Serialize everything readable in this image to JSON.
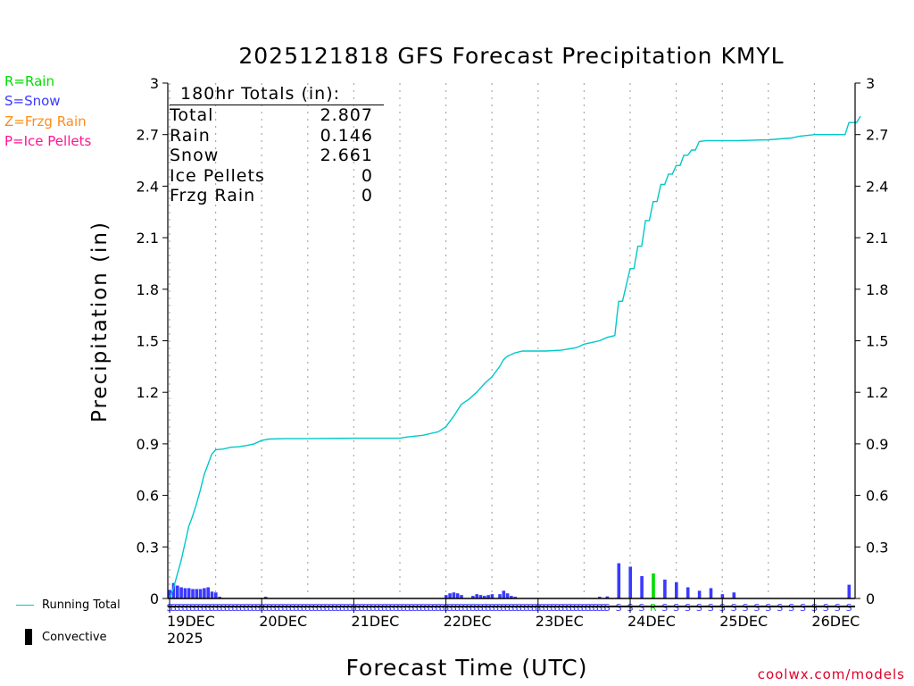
{
  "chart_data": {
    "type": "bar+line",
    "title": "2025121818 GFS Forecast Precipitation KMYL",
    "xlabel": "Forecast Time (UTC)",
    "ylabel": "Precipitation (in)",
    "ylim": [
      0,
      3
    ],
    "yticks": [
      "0",
      "0.3",
      "0.6",
      "0.9",
      "1.2",
      "1.5",
      "1.8",
      "2.1",
      "2.4",
      "2.7",
      "3"
    ],
    "xlim_hours": [
      0,
      180
    ],
    "xticks": [
      {
        "hour": 0,
        "label": "19DEC",
        "sublabel": "2025"
      },
      {
        "hour": 24,
        "label": "20DEC"
      },
      {
        "hour": 48,
        "label": "21DEC"
      },
      {
        "hour": 72,
        "label": "22DEC"
      },
      {
        "hour": 96,
        "label": "23DEC"
      },
      {
        "hour": 120,
        "label": "24DEC"
      },
      {
        "hour": 144,
        "label": "25DEC"
      },
      {
        "hour": 168,
        "label": "26DEC"
      }
    ],
    "grid": "vertical dotted at 12h",
    "legend_types": [
      "R=Rain",
      "S=Snow",
      "Z=Frzg Rain",
      "P=Ice Pellets"
    ],
    "legend_colors": {
      "R": "#00dd00",
      "S": "#3a3aff",
      "Z": "#ff8c1a",
      "P": "#ff1493"
    },
    "running_total_color": "#00c8c8",
    "series_running_total": {
      "name": "Running Total",
      "points": [
        [
          0,
          0
        ],
        [
          1,
          0.06
        ],
        [
          2,
          0.14
        ],
        [
          3,
          0.22
        ],
        [
          4,
          0.32
        ],
        [
          5,
          0.42
        ],
        [
          6,
          0.48
        ],
        [
          7,
          0.55
        ],
        [
          8,
          0.63
        ],
        [
          9,
          0.72
        ],
        [
          10,
          0.78
        ],
        [
          11,
          0.84
        ],
        [
          12,
          0.865
        ],
        [
          14,
          0.87
        ],
        [
          16,
          0.88
        ],
        [
          18,
          0.883
        ],
        [
          20,
          0.89
        ],
        [
          22,
          0.9
        ],
        [
          24,
          0.92
        ],
        [
          26,
          0.928
        ],
        [
          30,
          0.93
        ],
        [
          36,
          0.93
        ],
        [
          48,
          0.933
        ],
        [
          60,
          0.933
        ],
        [
          62,
          0.94
        ],
        [
          66,
          0.95
        ],
        [
          70,
          0.97
        ],
        [
          72,
          1.0
        ],
        [
          74,
          1.06
        ],
        [
          76,
          1.13
        ],
        [
          78,
          1.16
        ],
        [
          80,
          1.2
        ],
        [
          82,
          1.25
        ],
        [
          84,
          1.29
        ],
        [
          86,
          1.35
        ],
        [
          87,
          1.39
        ],
        [
          88,
          1.41
        ],
        [
          90,
          1.43
        ],
        [
          92,
          1.44
        ],
        [
          94,
          1.44
        ],
        [
          98,
          1.44
        ],
        [
          102,
          1.445
        ],
        [
          106,
          1.46
        ],
        [
          108,
          1.48
        ],
        [
          110,
          1.49
        ],
        [
          112,
          1.5
        ],
        [
          114,
          1.52
        ],
        [
          116,
          1.53
        ],
        [
          117,
          1.73
        ],
        [
          118,
          1.73
        ],
        [
          120,
          1.92
        ],
        [
          121,
          1.92
        ],
        [
          122,
          2.05
        ],
        [
          123,
          2.05
        ],
        [
          124,
          2.2
        ],
        [
          125,
          2.2
        ],
        [
          126,
          2.31
        ],
        [
          127,
          2.31
        ],
        [
          128,
          2.41
        ],
        [
          129,
          2.41
        ],
        [
          130,
          2.47
        ],
        [
          131,
          2.47
        ],
        [
          132,
          2.52
        ],
        [
          133,
          2.52
        ],
        [
          134,
          2.58
        ],
        [
          135,
          2.58
        ],
        [
          136,
          2.61
        ],
        [
          137,
          2.61
        ],
        [
          138,
          2.66
        ],
        [
          140,
          2.665
        ],
        [
          148,
          2.665
        ],
        [
          156,
          2.67
        ],
        [
          162,
          2.68
        ],
        [
          164,
          2.69
        ],
        [
          166,
          2.695
        ],
        [
          168,
          2.7
        ],
        [
          176,
          2.7
        ],
        [
          177,
          2.77
        ],
        [
          179,
          2.77
        ],
        [
          180,
          2.807
        ]
      ]
    },
    "bars": [
      {
        "hour": 0,
        "value": 0.05,
        "type": "S"
      },
      {
        "hour": 1,
        "value": 0.09,
        "type": "S"
      },
      {
        "hour": 2,
        "value": 0.075,
        "type": "S"
      },
      {
        "hour": 3,
        "value": 0.065,
        "type": "S"
      },
      {
        "hour": 4,
        "value": 0.06,
        "type": "S"
      },
      {
        "hour": 5,
        "value": 0.06,
        "type": "S"
      },
      {
        "hour": 6,
        "value": 0.055,
        "type": "S"
      },
      {
        "hour": 7,
        "value": 0.055,
        "type": "S"
      },
      {
        "hour": 8,
        "value": 0.055,
        "type": "S"
      },
      {
        "hour": 9,
        "value": 0.06,
        "type": "S"
      },
      {
        "hour": 10,
        "value": 0.065,
        "type": "S"
      },
      {
        "hour": 11,
        "value": 0.04,
        "type": "S"
      },
      {
        "hour": 12,
        "value": 0.035,
        "type": "S"
      },
      {
        "hour": 13,
        "value": 0.01,
        "type": "S"
      },
      {
        "hour": 25,
        "value": 0.01,
        "type": "S"
      },
      {
        "hour": 72,
        "value": 0.02,
        "type": "S"
      },
      {
        "hour": 73,
        "value": 0.03,
        "type": "S"
      },
      {
        "hour": 74,
        "value": 0.035,
        "type": "S"
      },
      {
        "hour": 75,
        "value": 0.03,
        "type": "S"
      },
      {
        "hour": 76,
        "value": 0.02,
        "type": "S"
      },
      {
        "hour": 79,
        "value": 0.015,
        "type": "S"
      },
      {
        "hour": 80,
        "value": 0.025,
        "type": "S"
      },
      {
        "hour": 81,
        "value": 0.02,
        "type": "S"
      },
      {
        "hour": 82,
        "value": 0.015,
        "type": "S"
      },
      {
        "hour": 83,
        "value": 0.02,
        "type": "S"
      },
      {
        "hour": 84,
        "value": 0.025,
        "type": "S"
      },
      {
        "hour": 86,
        "value": 0.025,
        "type": "S"
      },
      {
        "hour": 87,
        "value": 0.045,
        "type": "S"
      },
      {
        "hour": 88,
        "value": 0.03,
        "type": "S"
      },
      {
        "hour": 89,
        "value": 0.015,
        "type": "S"
      },
      {
        "hour": 90,
        "value": 0.01,
        "type": "S"
      },
      {
        "hour": 112,
        "value": 0.01,
        "type": "S"
      },
      {
        "hour": 114,
        "value": 0.012,
        "type": "S"
      },
      {
        "hour": 117,
        "value": 0.205,
        "type": "S"
      },
      {
        "hour": 120,
        "value": 0.185,
        "type": "S"
      },
      {
        "hour": 123,
        "value": 0.13,
        "type": "S"
      },
      {
        "hour": 126,
        "value": 0.146,
        "type": "R"
      },
      {
        "hour": 129,
        "value": 0.11,
        "type": "S"
      },
      {
        "hour": 132,
        "value": 0.095,
        "type": "S"
      },
      {
        "hour": 135,
        "value": 0.065,
        "type": "S"
      },
      {
        "hour": 138,
        "value": 0.045,
        "type": "S"
      },
      {
        "hour": 141,
        "value": 0.06,
        "type": "S"
      },
      {
        "hour": 144,
        "value": 0.025,
        "type": "S"
      },
      {
        "hour": 147,
        "value": 0.035,
        "type": "S"
      },
      {
        "hour": 177,
        "value": 0.08,
        "type": "S"
      }
    ],
    "type_markers": [
      {
        "from": 0,
        "to": 114,
        "step": 1,
        "type": "S"
      },
      {
        "from": 117,
        "to": 180,
        "step": 3,
        "type": "S",
        "except": [
          126
        ]
      },
      {
        "hour": 126,
        "type": "R"
      }
    ]
  },
  "legend_top": {
    "rain": "R=Rain",
    "snow": "S=Snow",
    "frzg_rain": "Z=Frzg Rain",
    "ice_pellets": "P=Ice Pellets"
  },
  "legend_bottom": {
    "running_total": "Running Total",
    "convective": "Convective"
  },
  "totals": {
    "header": "180hr Totals (in):",
    "rows": [
      {
        "label": "Total",
        "value": "2.807"
      },
      {
        "label": "Rain",
        "value": "0.146"
      },
      {
        "label": "Snow",
        "value": "2.661"
      },
      {
        "label": "Ice Pellets",
        "value": "0"
      },
      {
        "label": "Frzg Rain",
        "value": "0"
      }
    ]
  },
  "credit": "coolwx.com/models"
}
